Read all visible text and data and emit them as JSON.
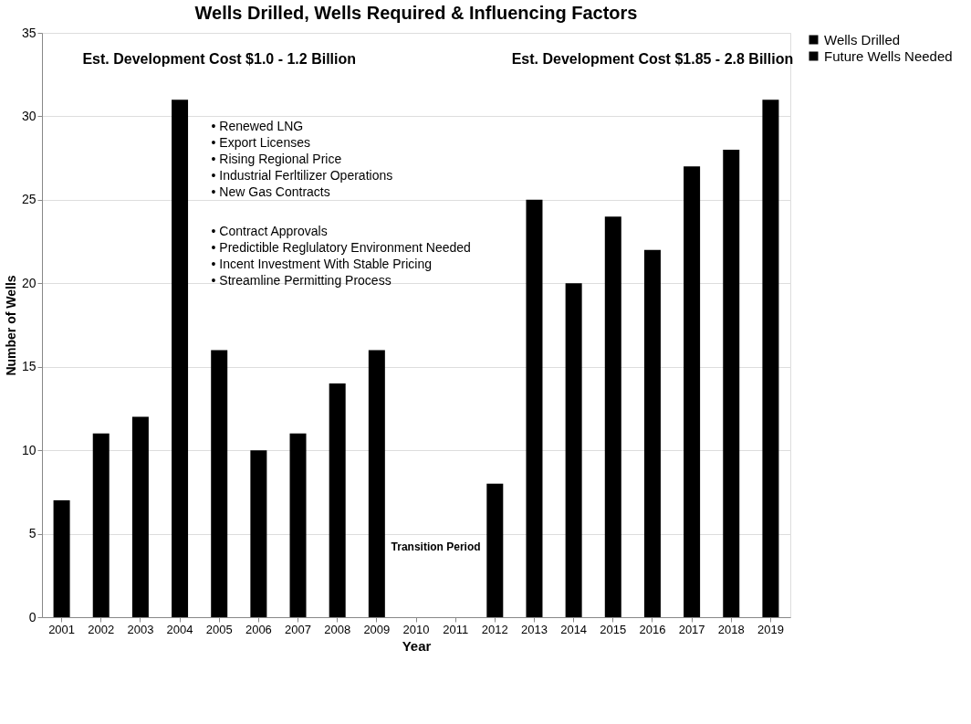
{
  "chart_data": {
    "type": "bar",
    "title": "Wells Drilled, Wells Required & Influencing Factors",
    "xlabel": "Year",
    "ylabel": "Number of Wells",
    "categories": [
      "2001",
      "2002",
      "2003",
      "2004",
      "2005",
      "2006",
      "2007",
      "2008",
      "2009",
      "2010",
      "2011",
      "2012",
      "2013",
      "2014",
      "2015",
      "2016",
      "2017",
      "2018",
      "2019"
    ],
    "series": [
      {
        "name": "Wells Drilled",
        "color": "#000000",
        "values": [
          7,
          11,
          12,
          31,
          16,
          10,
          11,
          14,
          16,
          null,
          null,
          null,
          null,
          null,
          null,
          null,
          null,
          null,
          null
        ]
      },
      {
        "name": "Future Wells Needed",
        "color": "#000000",
        "values": [
          null,
          null,
          null,
          null,
          null,
          null,
          null,
          null,
          null,
          null,
          null,
          8,
          25,
          20,
          24,
          22,
          27,
          28,
          31
        ]
      }
    ],
    "ylim": [
      0,
      35
    ],
    "yticks": [
      0,
      5,
      10,
      15,
      20,
      25,
      30,
      35
    ],
    "grid": "y",
    "legend": "right",
    "annotations": [
      "Est. Development Cost $1.0 - 1.2 Billion",
      "Est. Development Cost $1.85 - 2.8 Billion",
      "• Renewed LNG\n• Export Licenses\n• Rising Regional Price\n• Industrial Ferltilizer Operations\n• New Gas Contracts",
      "• Contract Approvals\n• Predictible Reglulatory Environment Needed\n• Incent Investment With Stable Pricing\n• Streamline Permitting Process",
      "Transition Period"
    ]
  }
}
